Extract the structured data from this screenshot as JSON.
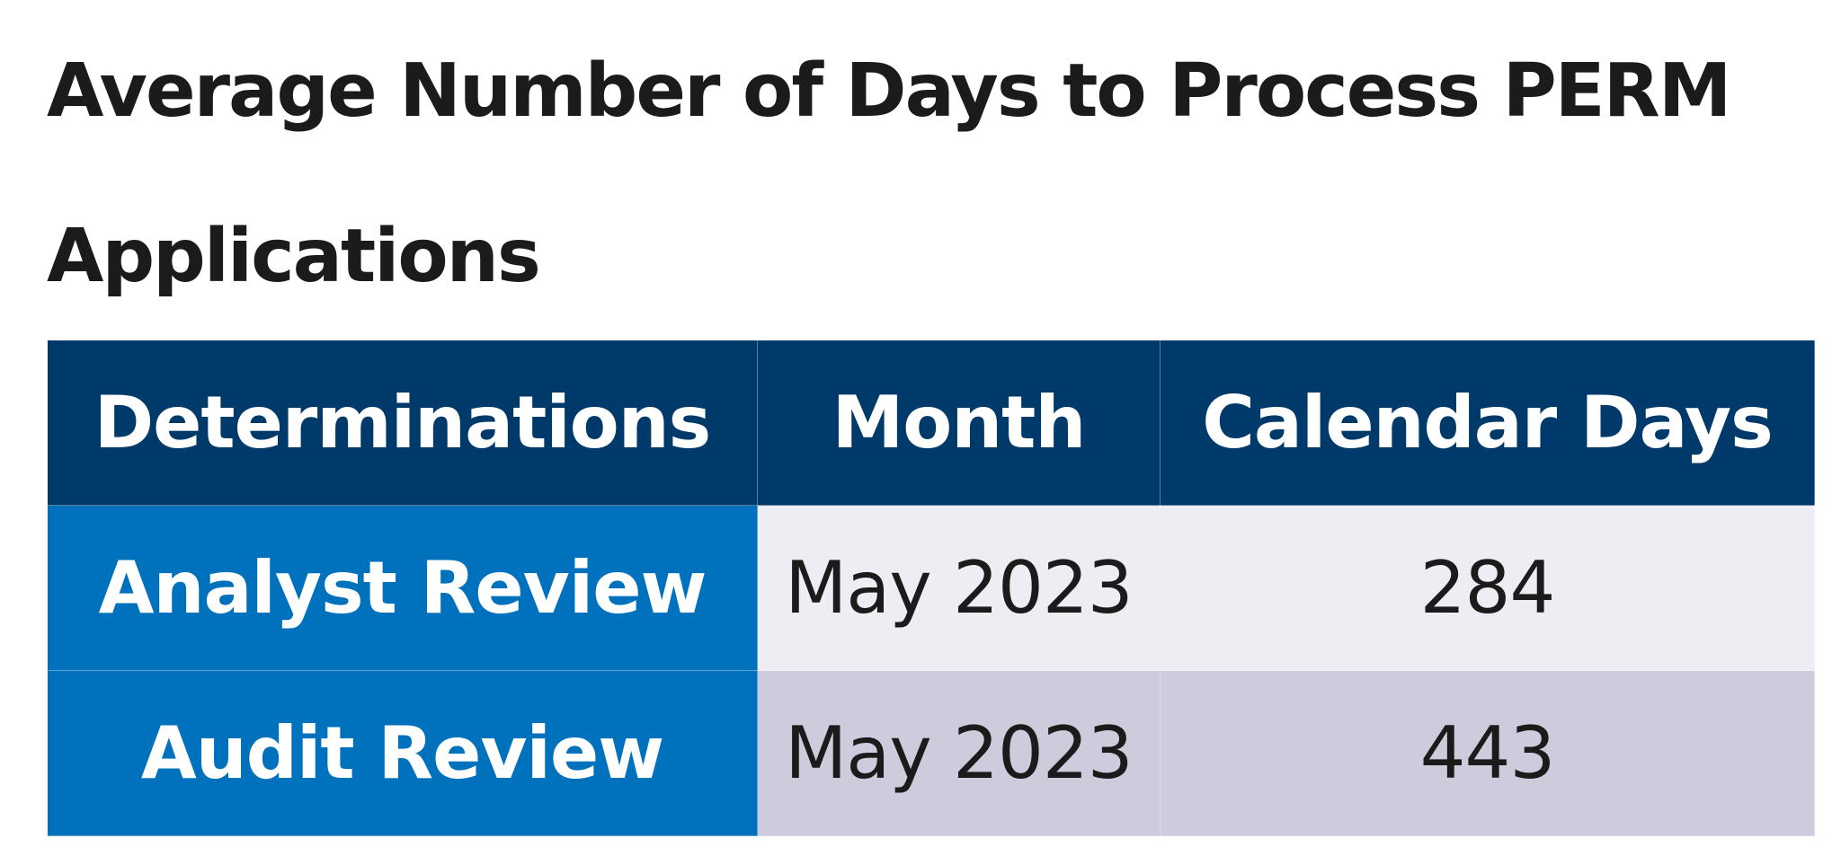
{
  "title": "Average Number of Days to Process PERM Applications",
  "table": {
    "headers": [
      "Determinations",
      "Month",
      "Calendar Days"
    ],
    "rows": [
      {
        "determination": "Analyst Review",
        "month": "May 2023",
        "days": "284"
      },
      {
        "determination": "Audit Review",
        "month": "May 2023",
        "days": "443"
      }
    ]
  },
  "colors": {
    "header_bg": "#003a6b",
    "row_header_bg": "#0071bc",
    "row_odd_bg": "#efedf4",
    "row_even_bg": "#cecbdc"
  }
}
